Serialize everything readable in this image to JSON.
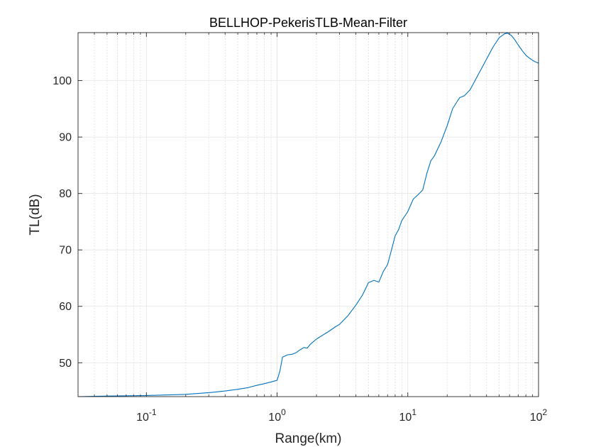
{
  "colors": {
    "background": "#ffffff",
    "axes": "#262626",
    "grid": "#e3e3e3",
    "line": "#0072bd"
  },
  "chart_data": {
    "type": "line",
    "title": "BELLHOP-PekerisTLB-Mean-Filter",
    "xlabel": "Range(km)",
    "ylabel": "TL(dB)",
    "xscale": "log",
    "xlim": [
      0.03,
      100
    ],
    "ylim": [
      44,
      108.5
    ],
    "grid": "on (major and minor)",
    "legend": "none",
    "x_ticks": [
      {
        "value": 0.1,
        "base": "10",
        "exp": "-1"
      },
      {
        "value": 1,
        "base": "10",
        "exp": "0"
      },
      {
        "value": 10,
        "base": "10",
        "exp": "1"
      },
      {
        "value": 100,
        "base": "10",
        "exp": "2"
      }
    ],
    "y_ticks": [
      50,
      60,
      70,
      80,
      90,
      100
    ],
    "series": [
      {
        "x": [
          0.03,
          0.05,
          0.1,
          0.2,
          0.3,
          0.4,
          0.5,
          0.6,
          0.7,
          0.8,
          0.9,
          1.0,
          1.05,
          1.1,
          1.2,
          1.3,
          1.4,
          1.5,
          1.6,
          1.7,
          1.8,
          2.0,
          2.2,
          2.5,
          2.8,
          3.0,
          3.5,
          4.0,
          4.5,
          5.0,
          5.5,
          6.0,
          6.5,
          7.0,
          7.5,
          8.0,
          8.5,
          9.0,
          10.0,
          11.0,
          12.0,
          13.0,
          14.0,
          15.0,
          16.0,
          18.0,
          20.0,
          22.0,
          24.0,
          25.0,
          27.0,
          30.0,
          35.0,
          40.0,
          45.0,
          50.0,
          55.0,
          58.0,
          62.0,
          66.0,
          70.0,
          75.0,
          80.0,
          85.0,
          90.0,
          95.0,
          100.0
        ],
        "y": [
          44.0,
          44.1,
          44.2,
          44.4,
          44.7,
          45.0,
          45.3,
          45.6,
          46.0,
          46.3,
          46.6,
          46.9,
          48.5,
          51.0,
          51.4,
          51.5,
          51.8,
          52.3,
          52.7,
          52.6,
          53.3,
          54.2,
          54.8,
          55.6,
          56.4,
          56.8,
          58.4,
          60.2,
          62.0,
          64.2,
          64.6,
          64.3,
          66.2,
          67.4,
          70.0,
          72.5,
          73.6,
          75.2,
          76.8,
          79.0,
          79.8,
          80.6,
          83.6,
          85.8,
          86.7,
          89.2,
          92.0,
          95.0,
          96.4,
          97.0,
          97.3,
          98.4,
          101.3,
          103.8,
          106.0,
          107.6,
          108.3,
          108.4,
          108.0,
          107.2,
          106.3,
          105.3,
          104.5,
          104.0,
          103.6,
          103.3,
          103.1
        ]
      }
    ]
  }
}
